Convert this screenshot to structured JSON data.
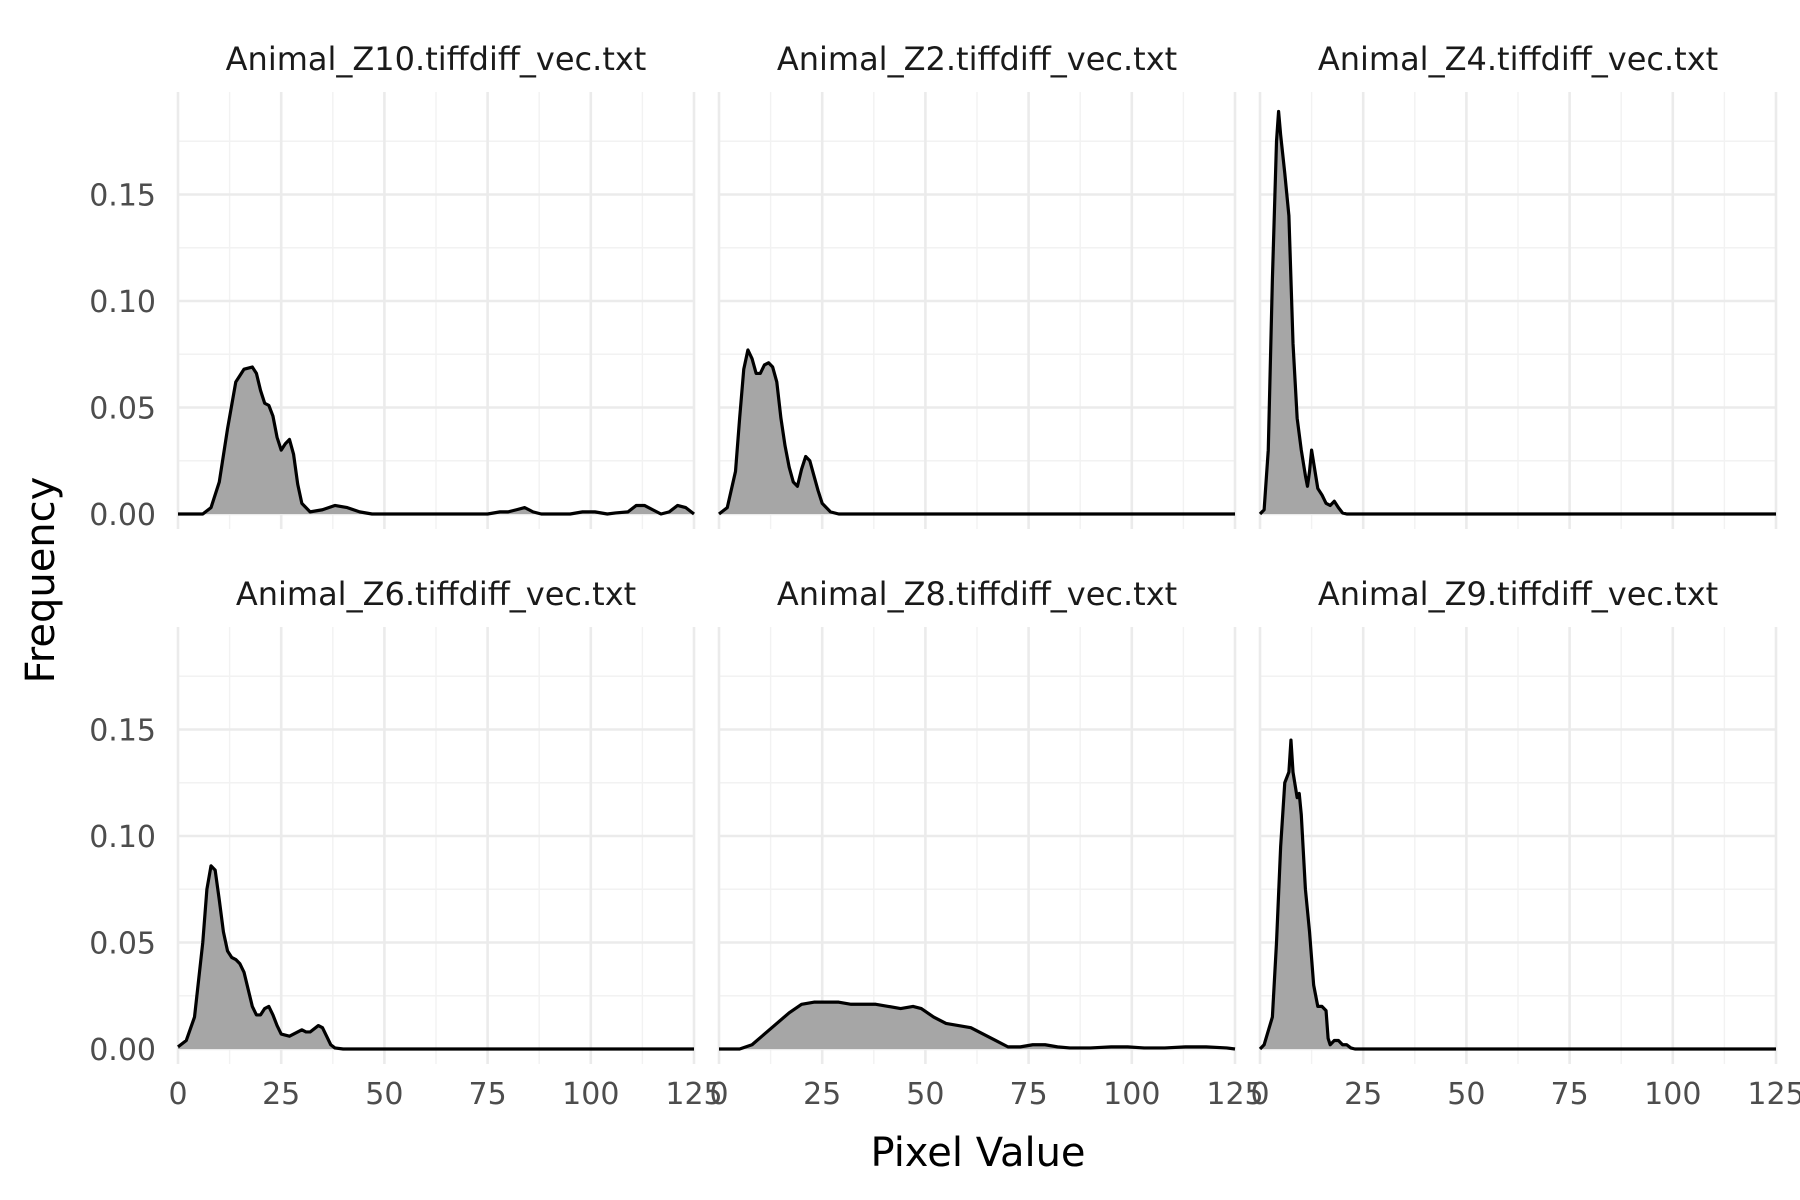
{
  "chart_data": {
    "type": "area",
    "xlabel": "Pixel Value",
    "ylabel": "Frequency",
    "xlim": [
      0,
      125
    ],
    "ylim": [
      0,
      0.19
    ],
    "x_ticks": [
      0,
      25,
      50,
      75,
      100,
      125
    ],
    "y_ticks": [
      0.0,
      0.05,
      0.1,
      0.15
    ],
    "y_tick_labels": [
      "0.00",
      "0.05",
      "0.10",
      "0.15"
    ],
    "fill_color": "#a6a6a6",
    "line_color": "#000000",
    "grid": true,
    "facets": [
      {
        "name": "Animal_Z10.tiffdiff_vec.txt",
        "points": [
          [
            0,
            0
          ],
          [
            6,
            0
          ],
          [
            8,
            0.003
          ],
          [
            10,
            0.015
          ],
          [
            12,
            0.04
          ],
          [
            14,
            0.062
          ],
          [
            16,
            0.068
          ],
          [
            18,
            0.069
          ],
          [
            19,
            0.066
          ],
          [
            20,
            0.058
          ],
          [
            21,
            0.052
          ],
          [
            22,
            0.051
          ],
          [
            23,
            0.046
          ],
          [
            24,
            0.036
          ],
          [
            25,
            0.03
          ],
          [
            26,
            0.033
          ],
          [
            27,
            0.035
          ],
          [
            28,
            0.028
          ],
          [
            29,
            0.014
          ],
          [
            30,
            0.005
          ],
          [
            32,
            0.001
          ],
          [
            35,
            0.002
          ],
          [
            38,
            0.004
          ],
          [
            41,
            0.003
          ],
          [
            44,
            0.001
          ],
          [
            47,
            0
          ],
          [
            75,
            0
          ],
          [
            78,
            0.001
          ],
          [
            80,
            0.001
          ],
          [
            82,
            0.002
          ],
          [
            84,
            0.003
          ],
          [
            86,
            0.001
          ],
          [
            88,
            0
          ],
          [
            95,
            0
          ],
          [
            98,
            0.001
          ],
          [
            101,
            0.001
          ],
          [
            104,
            0
          ],
          [
            106,
            0.0005
          ],
          [
            109,
            0.001
          ],
          [
            111,
            0.004
          ],
          [
            113,
            0.004
          ],
          [
            115,
            0.002
          ],
          [
            117,
            0
          ],
          [
            119,
            0.001
          ],
          [
            121,
            0.004
          ],
          [
            123,
            0.003
          ],
          [
            125,
            0
          ]
        ]
      },
      {
        "name": "Animal_Z2.tiffdiff_vec.txt",
        "points": [
          [
            0,
            0
          ],
          [
            2,
            0.003
          ],
          [
            4,
            0.02
          ],
          [
            5,
            0.045
          ],
          [
            6,
            0.068
          ],
          [
            7,
            0.077
          ],
          [
            8,
            0.073
          ],
          [
            9,
            0.066
          ],
          [
            10,
            0.066
          ],
          [
            11,
            0.07
          ],
          [
            12,
            0.071
          ],
          [
            13,
            0.069
          ],
          [
            14,
            0.062
          ],
          [
            15,
            0.045
          ],
          [
            16,
            0.032
          ],
          [
            17,
            0.022
          ],
          [
            18,
            0.015
          ],
          [
            19,
            0.013
          ],
          [
            20,
            0.021
          ],
          [
            21,
            0.027
          ],
          [
            22,
            0.025
          ],
          [
            23,
            0.018
          ],
          [
            24,
            0.011
          ],
          [
            25,
            0.005
          ],
          [
            27,
            0.001
          ],
          [
            29,
            0
          ],
          [
            125,
            0
          ]
        ]
      },
      {
        "name": "Animal_Z4.tiffdiff_vec.txt",
        "points": [
          [
            0,
            0
          ],
          [
            1,
            0.002
          ],
          [
            2,
            0.03
          ],
          [
            3,
            0.11
          ],
          [
            4,
            0.175
          ],
          [
            4.5,
            0.189
          ],
          [
            5,
            0.178
          ],
          [
            6,
            0.16
          ],
          [
            7,
            0.14
          ],
          [
            8,
            0.08
          ],
          [
            9,
            0.045
          ],
          [
            10,
            0.03
          ],
          [
            11,
            0.018
          ],
          [
            11.5,
            0.013
          ],
          [
            12,
            0.02
          ],
          [
            12.5,
            0.03
          ],
          [
            13,
            0.024
          ],
          [
            14,
            0.012
          ],
          [
            15,
            0.009
          ],
          [
            16,
            0.005
          ],
          [
            17,
            0.004
          ],
          [
            18,
            0.006
          ],
          [
            19,
            0.003
          ],
          [
            20,
            0.0005
          ],
          [
            21,
            0
          ],
          [
            125,
            0
          ]
        ]
      },
      {
        "name": "Animal_Z6.tiffdiff_vec.txt",
        "points": [
          [
            0,
            0.001
          ],
          [
            2,
            0.004
          ],
          [
            4,
            0.015
          ],
          [
            6,
            0.05
          ],
          [
            7,
            0.075
          ],
          [
            8,
            0.086
          ],
          [
            9,
            0.084
          ],
          [
            10,
            0.07
          ],
          [
            11,
            0.055
          ],
          [
            12,
            0.046
          ],
          [
            13,
            0.043
          ],
          [
            14,
            0.042
          ],
          [
            15,
            0.04
          ],
          [
            16,
            0.036
          ],
          [
            17,
            0.028
          ],
          [
            18,
            0.02
          ],
          [
            19,
            0.016
          ],
          [
            20,
            0.016
          ],
          [
            21,
            0.019
          ],
          [
            22,
            0.02
          ],
          [
            23,
            0.016
          ],
          [
            24,
            0.011
          ],
          [
            25,
            0.007
          ],
          [
            27,
            0.006
          ],
          [
            29,
            0.008
          ],
          [
            30,
            0.009
          ],
          [
            31,
            0.008
          ],
          [
            32,
            0.008
          ],
          [
            34,
            0.011
          ],
          [
            35,
            0.01
          ],
          [
            36,
            0.006
          ],
          [
            37,
            0.002
          ],
          [
            38,
            0.0005
          ],
          [
            40,
            0
          ],
          [
            125,
            0
          ]
        ]
      },
      {
        "name": "Animal_Z8.tiffdiff_vec.txt",
        "points": [
          [
            0,
            0
          ],
          [
            5,
            0
          ],
          [
            8,
            0.002
          ],
          [
            11,
            0.007
          ],
          [
            14,
            0.012
          ],
          [
            17,
            0.017
          ],
          [
            20,
            0.021
          ],
          [
            23,
            0.022
          ],
          [
            26,
            0.022
          ],
          [
            29,
            0.022
          ],
          [
            32,
            0.021
          ],
          [
            35,
            0.021
          ],
          [
            38,
            0.021
          ],
          [
            41,
            0.02
          ],
          [
            44,
            0.019
          ],
          [
            47,
            0.02
          ],
          [
            49,
            0.019
          ],
          [
            52,
            0.015
          ],
          [
            55,
            0.012
          ],
          [
            58,
            0.011
          ],
          [
            61,
            0.01
          ],
          [
            64,
            0.007
          ],
          [
            67,
            0.004
          ],
          [
            70,
            0.001
          ],
          [
            73,
            0.001
          ],
          [
            76,
            0.002
          ],
          [
            79,
            0.002
          ],
          [
            82,
            0.001
          ],
          [
            85,
            0.0005
          ],
          [
            90,
            0.0005
          ],
          [
            95,
            0.001
          ],
          [
            99,
            0.001
          ],
          [
            103,
            0.0005
          ],
          [
            108,
            0.0005
          ],
          [
            113,
            0.001
          ],
          [
            118,
            0.001
          ],
          [
            123,
            0.0005
          ],
          [
            125,
            0
          ]
        ]
      },
      {
        "name": "Animal_Z9.tiffdiff_vec.txt",
        "points": [
          [
            0,
            0
          ],
          [
            1,
            0.002
          ],
          [
            3,
            0.015
          ],
          [
            4,
            0.05
          ],
          [
            5,
            0.095
          ],
          [
            6,
            0.125
          ],
          [
            7,
            0.13
          ],
          [
            7.5,
            0.145
          ],
          [
            8,
            0.13
          ],
          [
            9,
            0.118
          ],
          [
            9.5,
            0.12
          ],
          [
            10,
            0.11
          ],
          [
            11,
            0.075
          ],
          [
            12,
            0.055
          ],
          [
            13,
            0.03
          ],
          [
            14,
            0.02
          ],
          [
            15,
            0.02
          ],
          [
            16,
            0.018
          ],
          [
            16.5,
            0.005
          ],
          [
            17,
            0.002
          ],
          [
            18,
            0.004
          ],
          [
            19,
            0.004
          ],
          [
            20,
            0.002
          ],
          [
            21,
            0.002
          ],
          [
            22,
            0.0005
          ],
          [
            23,
            0
          ],
          [
            125,
            0
          ]
        ]
      }
    ]
  }
}
